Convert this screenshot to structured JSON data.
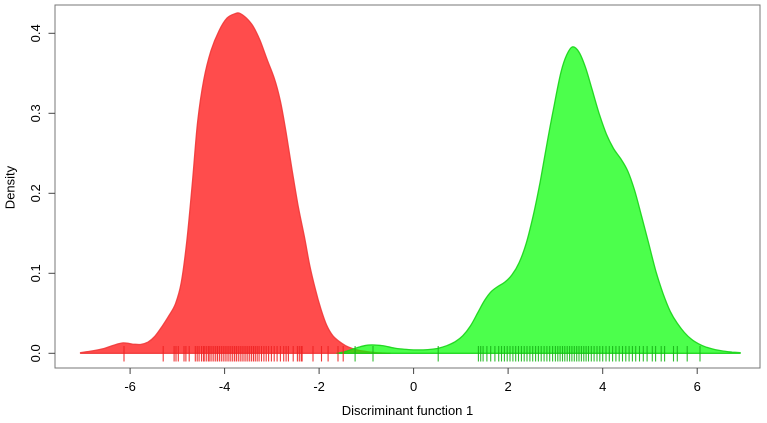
{
  "chart_data": {
    "type": "area",
    "title": "",
    "xlabel": "Discriminant function 1",
    "ylabel": "Density",
    "xlim": [
      -7.59,
      7.33
    ],
    "ylim": [
      -0.0184,
      0.4354
    ],
    "x_ticks": [
      -6,
      -4,
      -2,
      0,
      2,
      4,
      6
    ],
    "y_ticks": [
      0.0,
      0.1,
      0.2,
      0.3,
      0.4
    ],
    "grid": false,
    "legend": null,
    "colors": {
      "box": "#777777",
      "tick": "#444444",
      "text": "#000000",
      "red": "#FF0000",
      "red_stroke": "#F03838",
      "green": "#00FF00",
      "green_stroke": "#17D417"
    },
    "series": [
      {
        "name": "group-1-red-density",
        "color": "#FF0000",
        "fill_opacity": 0.7,
        "peak": {
          "x": -3.7,
          "density": 0.425
        },
        "points": [
          [
            -7.05,
            0.0008
          ],
          [
            -6.8,
            0.003
          ],
          [
            -6.55,
            0.006
          ],
          [
            -6.35,
            0.01
          ],
          [
            -6.15,
            0.013
          ],
          [
            -5.95,
            0.0115
          ],
          [
            -5.78,
            0.011
          ],
          [
            -5.62,
            0.014
          ],
          [
            -5.48,
            0.021
          ],
          [
            -5.32,
            0.034
          ],
          [
            -5.18,
            0.047
          ],
          [
            -5.04,
            0.062
          ],
          [
            -4.92,
            0.088
          ],
          [
            -4.8,
            0.14
          ],
          [
            -4.68,
            0.215
          ],
          [
            -4.57,
            0.29
          ],
          [
            -4.44,
            0.342
          ],
          [
            -4.29,
            0.378
          ],
          [
            -4.12,
            0.403
          ],
          [
            -3.95,
            0.419
          ],
          [
            -3.78,
            0.4245
          ],
          [
            -3.68,
            0.425
          ],
          [
            -3.54,
            0.419
          ],
          [
            -3.4,
            0.409
          ],
          [
            -3.25,
            0.391
          ],
          [
            -3.1,
            0.367
          ],
          [
            -2.95,
            0.344
          ],
          [
            -2.82,
            0.315
          ],
          [
            -2.7,
            0.276
          ],
          [
            -2.57,
            0.228
          ],
          [
            -2.44,
            0.183
          ],
          [
            -2.31,
            0.145
          ],
          [
            -2.2,
            0.11
          ],
          [
            -2.08,
            0.08
          ],
          [
            -1.96,
            0.055
          ],
          [
            -1.84,
            0.035
          ],
          [
            -1.71,
            0.022
          ],
          [
            -1.57,
            0.0145
          ],
          [
            -1.44,
            0.0095
          ],
          [
            -1.3,
            0.006
          ],
          [
            -1.14,
            0.0035
          ],
          [
            -0.98,
            0.002
          ],
          [
            -0.82,
            0.001
          ],
          [
            -0.62,
            0.0003
          ],
          [
            -0.5,
            0.0001
          ]
        ],
        "rug": [
          -6.13,
          -5.3,
          -5.07,
          -5.03,
          -4.98,
          -4.86,
          -4.82,
          -4.75,
          -4.62,
          -4.58,
          -4.54,
          -4.49,
          -4.45,
          -4.42,
          -4.38,
          -4.34,
          -4.31,
          -4.27,
          -4.23,
          -4.19,
          -4.15,
          -4.11,
          -4.07,
          -4.03,
          -3.99,
          -3.95,
          -3.91,
          -3.87,
          -3.83,
          -3.79,
          -3.75,
          -3.71,
          -3.67,
          -3.63,
          -3.59,
          -3.55,
          -3.51,
          -3.47,
          -3.43,
          -3.39,
          -3.35,
          -3.31,
          -3.27,
          -3.22,
          -3.17,
          -3.12,
          -3.07,
          -3.01,
          -2.95,
          -2.89,
          -2.82,
          -2.75,
          -2.7,
          -2.65,
          -2.55,
          -2.46,
          -2.42,
          -2.38,
          -2.36,
          -2.13,
          -1.95,
          -1.81,
          -1.6,
          -1.49
        ]
      },
      {
        "name": "group-2-green-density",
        "color": "#00FF00",
        "fill_opacity": 0.7,
        "peak": {
          "x": 3.35,
          "density": 0.383
        },
        "points": [
          [
            -1.62,
            0.0002
          ],
          [
            -1.46,
            0.002
          ],
          [
            -1.3,
            0.005
          ],
          [
            -1.14,
            0.008
          ],
          [
            -1.0,
            0.01
          ],
          [
            -0.88,
            0.0105
          ],
          [
            -0.74,
            0.01
          ],
          [
            -0.6,
            0.009
          ],
          [
            -0.45,
            0.007
          ],
          [
            -0.28,
            0.0055
          ],
          [
            -0.1,
            0.0046
          ],
          [
            0.1,
            0.0042
          ],
          [
            0.3,
            0.0046
          ],
          [
            0.5,
            0.006
          ],
          [
            0.7,
            0.0095
          ],
          [
            0.88,
            0.0145
          ],
          [
            1.04,
            0.022
          ],
          [
            1.2,
            0.034
          ],
          [
            1.35,
            0.05
          ],
          [
            1.5,
            0.066
          ],
          [
            1.64,
            0.077
          ],
          [
            1.78,
            0.0835
          ],
          [
            1.93,
            0.089
          ],
          [
            2.08,
            0.098
          ],
          [
            2.23,
            0.113
          ],
          [
            2.38,
            0.137
          ],
          [
            2.53,
            0.172
          ],
          [
            2.68,
            0.215
          ],
          [
            2.83,
            0.265
          ],
          [
            2.98,
            0.312
          ],
          [
            3.12,
            0.352
          ],
          [
            3.24,
            0.373
          ],
          [
            3.36,
            0.383
          ],
          [
            3.5,
            0.3765
          ],
          [
            3.64,
            0.357
          ],
          [
            3.78,
            0.329
          ],
          [
            3.93,
            0.299
          ],
          [
            4.08,
            0.274
          ],
          [
            4.23,
            0.256
          ],
          [
            4.38,
            0.2435
          ],
          [
            4.53,
            0.228
          ],
          [
            4.68,
            0.203
          ],
          [
            4.83,
            0.17
          ],
          [
            4.98,
            0.136
          ],
          [
            5.13,
            0.102
          ],
          [
            5.28,
            0.0745
          ],
          [
            5.43,
            0.0525
          ],
          [
            5.58,
            0.0375
          ],
          [
            5.73,
            0.026
          ],
          [
            5.88,
            0.0175
          ],
          [
            6.03,
            0.0118
          ],
          [
            6.2,
            0.0075
          ],
          [
            6.38,
            0.0046
          ],
          [
            6.56,
            0.0027
          ],
          [
            6.74,
            0.0015
          ],
          [
            6.91,
            0.0007
          ]
        ],
        "rug": [
          -1.24,
          -0.86,
          0.52,
          1.37,
          1.42,
          1.47,
          1.55,
          1.63,
          1.72,
          1.8,
          1.86,
          1.92,
          1.98,
          2.04,
          2.1,
          2.16,
          2.22,
          2.28,
          2.34,
          2.4,
          2.46,
          2.52,
          2.58,
          2.64,
          2.7,
          2.76,
          2.82,
          2.88,
          2.94,
          3.0,
          3.05,
          3.1,
          3.15,
          3.2,
          3.25,
          3.3,
          3.35,
          3.4,
          3.45,
          3.5,
          3.55,
          3.6,
          3.65,
          3.7,
          3.76,
          3.82,
          3.88,
          3.94,
          4.0,
          4.07,
          4.14,
          4.21,
          4.28,
          4.35,
          4.42,
          4.49,
          4.56,
          4.63,
          4.7,
          4.78,
          4.86,
          4.94,
          5.05,
          5.12,
          5.24,
          5.31,
          5.5,
          5.58,
          5.79,
          6.06
        ]
      }
    ]
  }
}
